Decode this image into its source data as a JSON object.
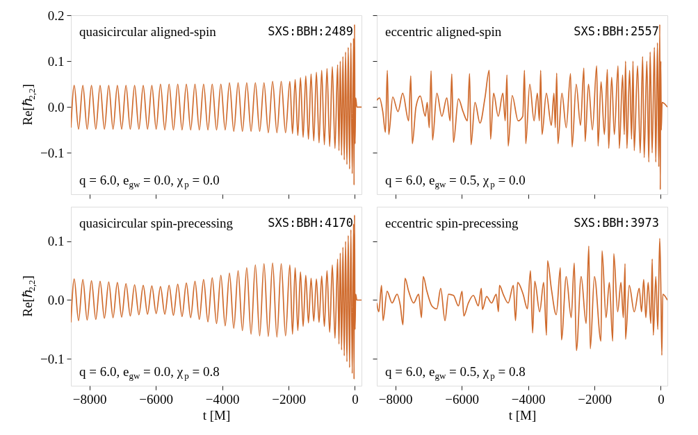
{
  "chart_data": [
    {
      "type": "line",
      "ylabel": "Re[ℏ$_{2,2}$]",
      "annotations": [
        "quasicircular aligned-spin",
        "SXS:BBH:2489",
        "q = 6.0, e$_{gw}$ = 0.0, χ$_{p}$ = 0.0"
      ],
      "xlim": [
        -8560,
        200
      ],
      "xticks": [
        -8000,
        -6000,
        -4000,
        -2000,
        0
      ],
      "ylim": [
        -0.19,
        0.2
      ],
      "yticks": [
        -0.1,
        {
          "value": 0,
          "label": "0.0"
        },
        0.1,
        0.2
      ],
      "tick_labels": "y",
      "series": [
        {
          "color": "#cf6a2c",
          "x": [
            -8560,
            -8460,
            -8330,
            -8200,
            -8070,
            -7940,
            -7810,
            -7680,
            -7550,
            -7420,
            -7290,
            -7160,
            -7030,
            -6900,
            -6770,
            -6640,
            -6510,
            -6380,
            -6250,
            -6120,
            -5990,
            -5860,
            -5730,
            -5600,
            -5470,
            -5340,
            -5210,
            -5080,
            -4950,
            -4820,
            -4690,
            -4560,
            -4430,
            -4300,
            -4170,
            -4040,
            -3910,
            -3780,
            -3650,
            -3520,
            -3390,
            -3260,
            -3130,
            -3000,
            -2870,
            -2740,
            -2610,
            -2480,
            -2350,
            -2220,
            -2090,
            -1960,
            -1880,
            -1800,
            -1720,
            -1640,
            -1560,
            -1480,
            -1400,
            -1320,
            -1240,
            -1160,
            -1080,
            -1000,
            -920,
            -840,
            -760,
            -680,
            -600,
            -520,
            -480,
            -440,
            -400,
            -360,
            -320,
            -280,
            -240,
            -200,
            -160,
            -120,
            -80,
            -40,
            -25,
            -10,
            5,
            25,
            60,
            200
          ],
          "values": [
            -0.045,
            0.047,
            -0.048,
            0.047,
            -0.048,
            0.047,
            -0.048,
            0.047,
            -0.048,
            0.047,
            -0.048,
            0.047,
            -0.048,
            0.047,
            -0.048,
            0.047,
            -0.048,
            0.047,
            -0.048,
            0.047,
            -0.048,
            0.05,
            -0.05,
            0.05,
            -0.05,
            0.05,
            -0.05,
            0.05,
            -0.05,
            0.05,
            -0.05,
            0.05,
            -0.05,
            0.05,
            -0.05,
            0.05,
            -0.05,
            0.053,
            -0.053,
            0.053,
            -0.053,
            0.053,
            -0.053,
            0.053,
            -0.053,
            0.053,
            -0.056,
            0.056,
            -0.056,
            0.056,
            -0.056,
            0.056,
            -0.058,
            0.06,
            -0.062,
            0.064,
            -0.066,
            0.068,
            -0.07,
            0.072,
            -0.074,
            0.076,
            -0.078,
            0.08,
            -0.082,
            0.084,
            -0.086,
            0.088,
            -0.09,
            0.092,
            -0.095,
            0.1,
            -0.105,
            0.11,
            -0.115,
            0.12,
            -0.125,
            0.13,
            -0.135,
            0.14,
            -0.145,
            0.15,
            -0.17,
            0.18,
            -0.08,
            0.02,
            0,
            0
          ]
        }
      ]
    },
    {
      "type": "line",
      "annotations": [
        "eccentric aligned-spin",
        "SXS:BBH:2557",
        "q = 6.0, e$_{gw}$ = 0.5, χ$_{p}$ = 0.0"
      ],
      "xlim": [
        -8560,
        200
      ],
      "xticks": [
        -8000,
        -6000,
        -4000,
        -2000,
        0
      ],
      "ylim": [
        -0.19,
        0.2
      ],
      "yticks": [
        -0.1,
        0,
        0.1,
        0.2
      ],
      "tick_labels": false,
      "series": [
        {
          "color": "#cf6a2c",
          "x": [
            -8560,
            -8480,
            -8380,
            -8300,
            -8243,
            -8200,
            -8080,
            -7920,
            -7780,
            -7600,
            -7536,
            -7490,
            -7380,
            -7250,
            -7100,
            -7040,
            -6980,
            -6923,
            -6880,
            -6750,
            -6600,
            -6450,
            -6350,
            -6300,
            -6250,
            -6100,
            -5960,
            -5830,
            -5764,
            -5720,
            -5600,
            -5450,
            -5300,
            -5172,
            -5130,
            -5040,
            -4900,
            -4760,
            -4690,
            -4637,
            -4600,
            -4480,
            -4300,
            -4160,
            -4109,
            -4070,
            -3950,
            -3820,
            -3720,
            -3660,
            -3620,
            -3580,
            -3450,
            -3300,
            -3220,
            -3180,
            -3137,
            -3100,
            -2980,
            -2850,
            -2720,
            -2673,
            -2550,
            -2420,
            -2319,
            -2280,
            -2180,
            -2060,
            -1932,
            -1890,
            -1800,
            -1700,
            -1610,
            -1570,
            -1480,
            -1400,
            -1288,
            -1250,
            -1150,
            -1100,
            -1062,
            -1020,
            -940,
            -880,
            -837,
            -800,
            -700,
            -620,
            -547,
            -500,
            -420,
            -360,
            -321,
            -260,
            -193,
            -150,
            -100,
            -60,
            -30,
            -15,
            0,
            15,
            40,
            200
          ],
          "values": [
            0.015,
            0.02,
            -0.01,
            -0.055,
            0.08,
            -0.06,
            0.022,
            -0.01,
            0.03,
            -0.03,
            0.068,
            -0.08,
            0.0,
            0.024,
            -0.02,
            0.01,
            -0.045,
            0.079,
            -0.072,
            0.03,
            -0.02,
            0.02,
            -0.03,
            0.072,
            -0.077,
            0.018,
            -0.01,
            -0.03,
            0.073,
            -0.082,
            0.01,
            -0.035,
            0.02,
            0.08,
            -0.07,
            0.03,
            -0.02,
            0.03,
            -0.03,
            0.07,
            -0.085,
            0.025,
            -0.03,
            -0.02,
            0.08,
            -0.08,
            0.05,
            -0.03,
            0.03,
            -0.03,
            0.08,
            -0.06,
            0.03,
            -0.04,
            0.03,
            -0.045,
            0.074,
            -0.08,
            0.03,
            -0.045,
            0.073,
            -0.087,
            0.05,
            -0.04,
            0.085,
            -0.075,
            0.05,
            -0.05,
            0.09,
            -0.085,
            0.055,
            -0.06,
            0.082,
            -0.09,
            0.065,
            -0.06,
            0.09,
            -0.09,
            0.07,
            -0.06,
            0.1,
            -0.09,
            0.08,
            -0.07,
            0.1,
            -0.095,
            0.09,
            -0.1,
            0.11,
            -0.11,
            0.1,
            -0.12,
            0.12,
            -0.1,
            0.13,
            -0.12,
            0.14,
            -0.13,
            0.18,
            -0.18,
            0.1,
            -0.05,
            0.01,
            0.0
          ]
        }
      ]
    },
    {
      "type": "line",
      "xlabel": "t [M]",
      "ylabel": "Re[ℏ$_{2,2}$]",
      "annotations": [
        "quasicircular spin-precessing",
        "SXS:BBH:4170",
        "q = 6.0, e$_{gw}$ = 0.0, χ$_{p}$ = 0.8"
      ],
      "xlim": [
        -8560,
        200
      ],
      "xticks": [
        {
          "value": -8000,
          "label": "−8000"
        },
        {
          "value": -6000,
          "label": "−6000"
        },
        {
          "value": -4000,
          "label": "−4000"
        },
        {
          "value": -2000,
          "label": "−2000"
        },
        0
      ],
      "ylim": [
        -0.146,
        0.159
      ],
      "yticks": [
        -0.1,
        {
          "value": 0,
          "label": "0.0"
        },
        0.1
      ],
      "series": [
        {
          "color": "#cf6a2c",
          "x": [
            -8560,
            -8460,
            -8330,
            -8200,
            -8070,
            -7940,
            -7810,
            -7680,
            -7550,
            -7420,
            -7290,
            -7160,
            -7030,
            -6900,
            -6770,
            -6640,
            -6510,
            -6380,
            -6250,
            -6120,
            -5990,
            -5860,
            -5730,
            -5600,
            -5470,
            -5340,
            -5210,
            -5080,
            -4950,
            -4820,
            -4690,
            -4560,
            -4430,
            -4300,
            -4170,
            -4040,
            -3910,
            -3780,
            -3650,
            -3520,
            -3390,
            -3260,
            -3130,
            -3000,
            -2870,
            -2740,
            -2610,
            -2480,
            -2350,
            -2220,
            -2090,
            -1960,
            -1880,
            -1800,
            -1720,
            -1640,
            -1560,
            -1480,
            -1400,
            -1320,
            -1240,
            -1160,
            -1080,
            -1000,
            -920,
            -840,
            -760,
            -680,
            -600,
            -520,
            -480,
            -440,
            -400,
            -360,
            -320,
            -280,
            -240,
            -200,
            -160,
            -120,
            -80,
            -40,
            -25,
            -10,
            5,
            25,
            60,
            200
          ],
          "values": [
            -0.038,
            0.036,
            -0.035,
            0.035,
            -0.034,
            0.033,
            -0.033,
            0.032,
            -0.031,
            0.031,
            -0.03,
            0.03,
            -0.029,
            0.028,
            -0.027,
            0.026,
            -0.025,
            0.025,
            -0.024,
            0.024,
            -0.023,
            0.023,
            -0.024,
            0.025,
            -0.026,
            0.027,
            -0.028,
            0.029,
            -0.03,
            0.032,
            -0.033,
            0.035,
            -0.037,
            0.038,
            -0.04,
            0.042,
            -0.044,
            0.046,
            -0.048,
            0.05,
            -0.052,
            0.055,
            -0.058,
            0.06,
            -0.061,
            0.062,
            -0.062,
            0.063,
            -0.063,
            0.062,
            -0.061,
            0.06,
            -0.058,
            0.055,
            -0.052,
            0.048,
            -0.045,
            0.042,
            -0.039,
            0.037,
            -0.036,
            0.036,
            -0.038,
            0.041,
            -0.045,
            0.05,
            -0.055,
            0.06,
            -0.065,
            0.07,
            -0.075,
            0.08,
            -0.085,
            0.09,
            -0.095,
            0.1,
            -0.105,
            0.11,
            -0.115,
            0.12,
            -0.125,
            0.13,
            -0.135,
            0.145,
            -0.05,
            0.01,
            0,
            0
          ]
        }
      ]
    },
    {
      "type": "line",
      "xlabel": "t [M]",
      "annotations": [
        "eccentric spin-precessing",
        "SXS:BBH:3973",
        "q = 6.0, e$_{gw}$ = 0.5, χ$_{p}$ = 0.8"
      ],
      "xlim": [
        -8560,
        200
      ],
      "xticks": [
        {
          "value": -8000,
          "label": "−8000"
        },
        {
          "value": -6000,
          "label": "−6000"
        },
        {
          "value": -4000,
          "label": "−4000"
        },
        {
          "value": -2000,
          "label": "−2000"
        },
        0
      ],
      "ylim": [
        -0.146,
        0.159
      ],
      "yticks": [
        -0.1,
        0,
        0.1
      ],
      "tick_labels": "x",
      "series": [
        {
          "color": "#cf6a2c",
          "x": [
            -8560,
            -8500,
            -8417,
            -8372,
            -8250,
            -8100,
            -7950,
            -7850,
            -7773,
            -7709,
            -7600,
            -7450,
            -7300,
            -7213,
            -7161,
            -7050,
            -6900,
            -6750,
            -6634,
            -6505,
            -6400,
            -6250,
            -6100,
            -5990,
            -5938,
            -5800,
            -5650,
            -5500,
            -5410,
            -5377,
            -5250,
            -5100,
            -4960,
            -4894,
            -4862,
            -4750,
            -4600,
            -4444,
            -4379,
            -4315,
            -4150,
            -4020,
            -3928,
            -3864,
            -3799,
            -3650,
            -3530,
            -3445,
            -3413,
            -3300,
            -3150,
            -3027,
            -2994,
            -2850,
            -2700,
            -2608,
            -2544,
            -2400,
            -2250,
            -2170,
            -2125,
            -2000,
            -1803,
            -1771,
            -1650,
            -1550,
            -1449,
            -1417,
            -1300,
            -1200,
            -1130,
            -1076,
            -1063,
            -950,
            -800,
            -650,
            -580,
            -515,
            -450,
            -380,
            -300,
            -258,
            -225,
            -150,
            -90,
            -32,
            0,
            32,
            60,
            200
          ],
          "values": [
            -0.005,
            -0.02,
            0.025,
            -0.035,
            0.015,
            -0.005,
            0.01,
            -0.01,
            -0.042,
            0.037,
            0.015,
            -0.005,
            0.01,
            -0.03,
            0.04,
            0.015,
            -0.01,
            -0.015,
            0.02,
            -0.035,
            0.01,
            0.008,
            -0.01,
            0.015,
            -0.027,
            -0.005,
            0.008,
            -0.01,
            0.02,
            -0.016,
            0.006,
            -0.005,
            0.01,
            -0.02,
            0.025,
            0.01,
            -0.005,
            0.025,
            -0.035,
            0.03,
            0.01,
            -0.015,
            0.05,
            -0.056,
            0.032,
            -0.02,
            0.03,
            -0.06,
            0.067,
            0.02,
            -0.025,
            0.055,
            -0.068,
            0.04,
            -0.03,
            0.063,
            -0.086,
            0.04,
            -0.04,
            0.092,
            -0.083,
            0.04,
            -0.07,
            0.084,
            -0.03,
            0.03,
            -0.07,
            0.079,
            -0.02,
            0.03,
            -0.03,
            0.062,
            -0.067,
            0.025,
            -0.02,
            0.02,
            -0.02,
            0.035,
            -0.03,
            0.03,
            -0.04,
            0.07,
            -0.06,
            0.04,
            -0.05,
            0.105,
            0.03,
            -0.094,
            0.01,
            0.0
          ]
        }
      ]
    }
  ]
}
